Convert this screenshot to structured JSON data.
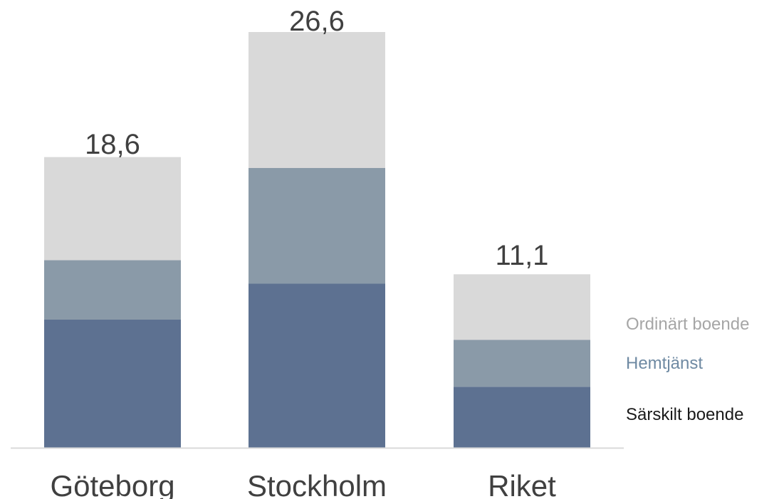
{
  "chart_data": {
    "type": "bar",
    "stacked": true,
    "categories": [
      "Göteborg",
      "Stockholm",
      "Riket"
    ],
    "totals": [
      "18,6",
      "26,6",
      "11,1"
    ],
    "series": [
      {
        "name": "Särskilt boende",
        "values": [
          8.2,
          10.5,
          3.9
        ],
        "color": "#5d7191"
      },
      {
        "name": "Hemtjänst",
        "values": [
          3.8,
          7.4,
          3.0
        ],
        "color": "#8a9aa8"
      },
      {
        "name": "Ordinärt boende",
        "values": [
          6.6,
          8.7,
          4.2
        ],
        "color": "#d9d9d9"
      }
    ],
    "legend_colors": [
      "#1a1a1a",
      "#6f8aa3",
      "#a6a6a6"
    ],
    "ylim": [
      0,
      26.6
    ],
    "grid": false,
    "legend_position": "right",
    "axis_color": "#d9d9d9"
  }
}
